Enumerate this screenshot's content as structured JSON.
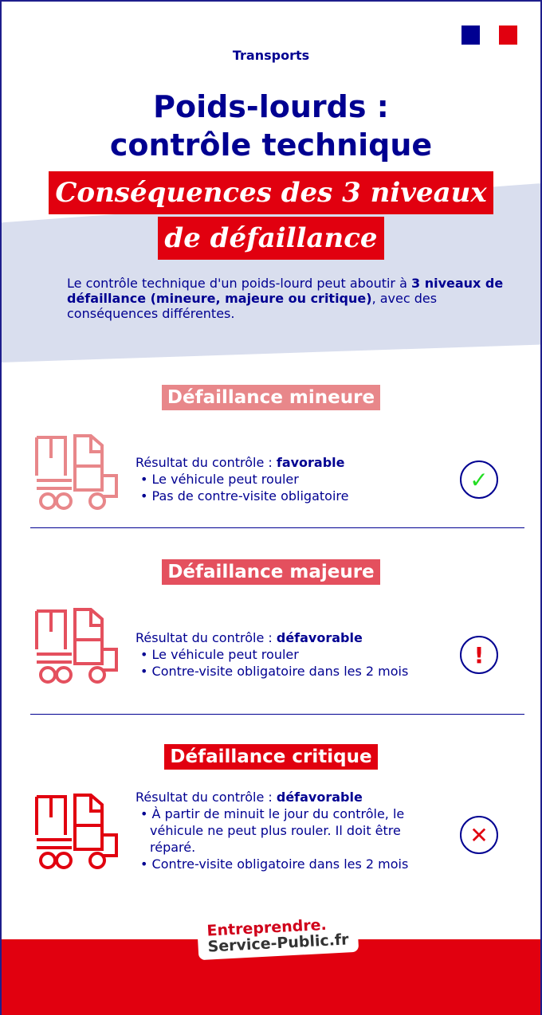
{
  "header": {
    "category": "Transports",
    "title_line1": "Poids-lourds :",
    "title_line2": "contrôle technique",
    "highlight_line1": "Conséquences des 3 niveaux",
    "highlight_line2": "de défaillance"
  },
  "intro": {
    "part1": "Le contrôle technique d'un poids-lourd peut aboutir à ",
    "bold": "3 niveaux de défaillance (mineure, majeure ou critique)",
    "part2": ", avec des conséquences différentes."
  },
  "sections": [
    {
      "heading": "Défaillance mineure",
      "color": "#e8878a",
      "result_label": "Résultat du contrôle : ",
      "result": "favorable",
      "bullets": [
        "Le véhicule peut rouler",
        "Pas de contre-visite obligatoire"
      ],
      "icon": "check-icon",
      "symbol": "✓",
      "symbol_color": "#22dd22"
    },
    {
      "heading": "Défaillance majeure",
      "color": "#e4505e",
      "result_label": "Résultat du contrôle : ",
      "result": "défavorable",
      "bullets": [
        "Le véhicule peut rouler",
        "Contre-visite obligatoire dans les 2 mois"
      ],
      "icon": "exclamation-icon",
      "symbol": "!",
      "symbol_color": "#e1000f"
    },
    {
      "heading": "Défaillance critique",
      "color": "#e1000f",
      "result_label": "Résultat du contrôle : ",
      "result": "défavorable",
      "bullets": [
        "À partir de minuit le jour du contrôle, le véhicule ne peut plus rouler. Il doit être réparé.",
        "Contre-visite obligatoire dans les 2 mois"
      ],
      "icon": "cross-icon",
      "symbol": "✕",
      "symbol_color": "#e1000f"
    }
  ],
  "footer": {
    "logo_line1": "Entreprendre.",
    "logo_line2": "Service-Public.fr"
  },
  "colors": {
    "navy": "#000091",
    "red": "#e1000f",
    "band": "#d9deee"
  }
}
